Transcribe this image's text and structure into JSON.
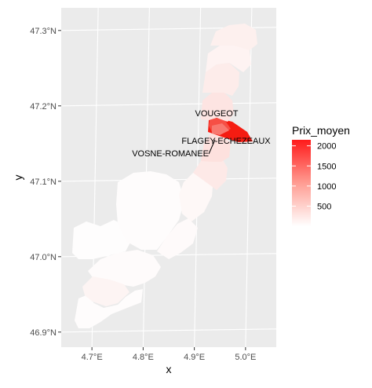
{
  "chart_data": {
    "type": "map",
    "xlabel": "x",
    "ylabel": "y",
    "x_ticks": [
      {
        "value": 4.7,
        "label": "4.7°E"
      },
      {
        "value": 4.8,
        "label": "4.8°E"
      },
      {
        "value": 4.9,
        "label": "4.9°E"
      },
      {
        "value": 5.0,
        "label": "5.0°E"
      }
    ],
    "y_ticks": [
      {
        "value": 46.9,
        "label": "46.9°N"
      },
      {
        "value": 47.0,
        "label": "47.0°N"
      },
      {
        "value": 47.1,
        "label": "47.1°N"
      },
      {
        "value": 47.2,
        "label": "47.2°N"
      },
      {
        "value": 47.3,
        "label": "47.3°N"
      }
    ],
    "xlim": [
      4.64,
      5.06
    ],
    "ylim": [
      46.88,
      47.33
    ],
    "grid": true,
    "annotations": [
      {
        "text": "VOUGEOT",
        "lon": 4.953,
        "lat": 47.17
      },
      {
        "text": "FLAGEY-ECHEZEAUX",
        "lon": 4.97,
        "lat": 47.155
      },
      {
        "text": "VOSNE-ROMANEE",
        "lon": 4.945,
        "lat": 47.155
      }
    ],
    "legend": {
      "title": "Prix_moyen",
      "placement": "right",
      "min": 0,
      "max": 2150,
      "breaks": [
        500,
        1000,
        1500,
        2000
      ],
      "color_low": "#ffffff",
      "color_high": "#ff1a1a"
    },
    "colors": {
      "panel": "#ebebeb",
      "grid": "#ffffff",
      "commune_low": "#fefcfc",
      "commune_mid": "#fde4e2",
      "commune_high": "#f51c12"
    }
  }
}
